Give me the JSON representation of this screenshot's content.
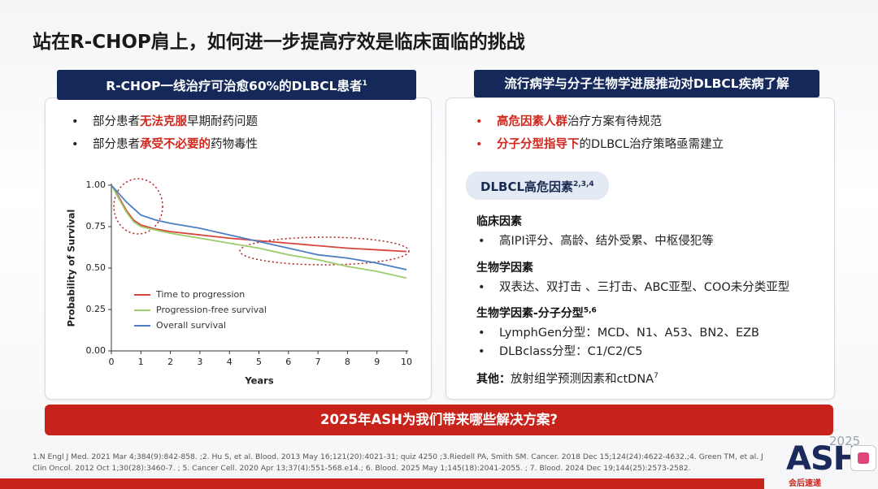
{
  "title": "站在R-CHOP肩上，如何进一步提高疗效是临床面临的挑战",
  "left": {
    "header": {
      "text": "R-CHOP一线治疗可治愈60%的DLBCL患者",
      "sup": "1"
    },
    "bullets": [
      {
        "parts": [
          "部分患者",
          "无法克服",
          "早期耐药问题"
        ]
      },
      {
        "parts": [
          "部分患者",
          "承受不必要的",
          "药物毒性"
        ]
      }
    ]
  },
  "chart_data": {
    "type": "line",
    "x_label": "Years",
    "y_label": "Probability of Survival",
    "x": [
      0,
      0.25,
      0.5,
      0.75,
      1,
      1.5,
      2,
      3,
      4,
      5,
      6,
      7,
      8,
      9,
      10
    ],
    "series": [
      {
        "name": "Time to progression",
        "color": "#d9453a",
        "values": [
          1.0,
          0.93,
          0.85,
          0.79,
          0.76,
          0.735,
          0.72,
          0.7,
          0.68,
          0.665,
          0.65,
          0.635,
          0.62,
          0.61,
          0.6
        ]
      },
      {
        "name": "Progression-free survival",
        "color": "#9dcc6a",
        "values": [
          1.0,
          0.92,
          0.84,
          0.78,
          0.75,
          0.73,
          0.71,
          0.68,
          0.65,
          0.62,
          0.58,
          0.55,
          0.51,
          0.48,
          0.44
        ]
      },
      {
        "name": "Overall survival",
        "color": "#4b7fc4",
        "values": [
          1.0,
          0.95,
          0.9,
          0.86,
          0.82,
          0.79,
          0.77,
          0.74,
          0.7,
          0.66,
          0.62,
          0.58,
          0.56,
          0.53,
          0.49
        ]
      }
    ],
    "xlim": [
      0,
      10
    ],
    "xticks": [
      0,
      1,
      2,
      3,
      4,
      5,
      6,
      7,
      8,
      9,
      10
    ],
    "ylim": [
      0,
      1
    ],
    "yticks": [
      {
        "value": 0,
        "label": "0.00"
      },
      {
        "value": 0.25,
        "label": "0.25"
      },
      {
        "value": 0.5,
        "label": "0.50"
      },
      {
        "value": 0.75,
        "label": "0.75"
      },
      {
        "value": 1,
        "label": "1.00"
      }
    ],
    "legend": "lower left"
  },
  "right": {
    "header": "流行病学与分子生物学进展推动对DLBCL疾病了解",
    "bullets": [
      {
        "parts": [
          "高危因素人群",
          "治疗方案有待规范"
        ]
      },
      {
        "parts": [
          "分子分型指导下",
          "的DLBCL治疗策略亟需建立"
        ]
      }
    ],
    "pill": {
      "text": "DLBCL高危因素",
      "sup": "2,3,4"
    },
    "sections": [
      {
        "heading": "临床因素",
        "items": [
          "高IPI评分、高龄、结外受累、中枢侵犯等"
        ]
      },
      {
        "heading": "生物学因素",
        "items": [
          "双表达、双打击 、三打击、ABC亚型、COO未分类亚型"
        ]
      },
      {
        "heading": "生物学因素-分子分型",
        "sup": "5,6",
        "items": [
          "LymphGen分型：MCD、N1、A53、BN2、EZB",
          "DLBclass分型：C1/C2/C5"
        ]
      }
    ],
    "other": {
      "heading": "其他：",
      "text": "放射组学预测因素和ctDNA",
      "sup": "7"
    }
  },
  "banner": "2025年ASH为我们带来哪些解决方案?",
  "references": "1.N Engl J Med. 2021 Mar 4;384(9):842-858. ;2. Hu S, et al. Blood. 2013 May 16;121(20):4021-31; quiz 4250 ;3.Riedell PA, Smith SM. Cancer. 2018 Dec 15;124(24):4622-4632.;4. Green TM, et al. J Clin Oncol. 2012 Oct 1;30(28):3460-7. ;  5. Cancer Cell. 2020 Apr 13;37(4):551-568.e14.; 6. Blood. 2025 May 1;145(18):2041-2055. ;  7. Blood. 2024 Dec 19;144(25):2573-2582.",
  "logo": {
    "year": "2025",
    "name": "ASH",
    "tag": "会后速递"
  }
}
